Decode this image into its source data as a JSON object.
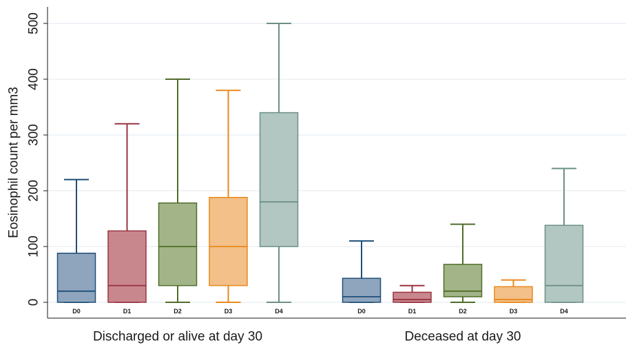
{
  "chart_data": {
    "type": "box",
    "ylabel": "Eosinophil count per mm3",
    "ylim": [
      0,
      500
    ],
    "yticks": [
      0,
      100,
      200,
      300,
      400,
      500
    ],
    "grid": true,
    "colors": {
      "D0": {
        "fill": "#8fa5bd",
        "stroke": "#1f4e79"
      },
      "D1": {
        "fill": "#c8878d",
        "stroke": "#993340"
      },
      "D2": {
        "fill": "#a3b588",
        "stroke": "#4f6d2a"
      },
      "D3": {
        "fill": "#f2c088",
        "stroke": "#e8891c"
      },
      "D4": {
        "fill": "#b3c7c2",
        "stroke": "#6c8f86"
      }
    },
    "groups": [
      {
        "label": "Discharged or alive at day 30",
        "boxes": [
          {
            "category": "D0",
            "min": 0,
            "q1": 0,
            "median": 20,
            "q3": 88,
            "max": 220
          },
          {
            "category": "D1",
            "min": 0,
            "q1": 0,
            "median": 30,
            "q3": 128,
            "max": 320
          },
          {
            "category": "D2",
            "min": 0,
            "q1": 30,
            "median": 100,
            "q3": 178,
            "max": 400
          },
          {
            "category": "D3",
            "min": 0,
            "q1": 30,
            "median": 100,
            "q3": 188,
            "max": 380
          },
          {
            "category": "D4",
            "min": 0,
            "q1": 100,
            "median": 180,
            "q3": 340,
            "max": 500
          }
        ]
      },
      {
        "label": "Deceased at day 30",
        "boxes": [
          {
            "category": "D0",
            "min": 0,
            "q1": 0,
            "median": 10,
            "q3": 43,
            "max": 110
          },
          {
            "category": "D1",
            "min": 0,
            "q1": 0,
            "median": 5,
            "q3": 18,
            "max": 30
          },
          {
            "category": "D2",
            "min": 0,
            "q1": 10,
            "median": 20,
            "q3": 68,
            "max": 140
          },
          {
            "category": "D3",
            "min": 0,
            "q1": 0,
            "median": 5,
            "q3": 28,
            "max": 40
          },
          {
            "category": "D4",
            "min": 0,
            "q1": 0,
            "median": 30,
            "q3": 138,
            "max": 240
          }
        ]
      }
    ]
  }
}
